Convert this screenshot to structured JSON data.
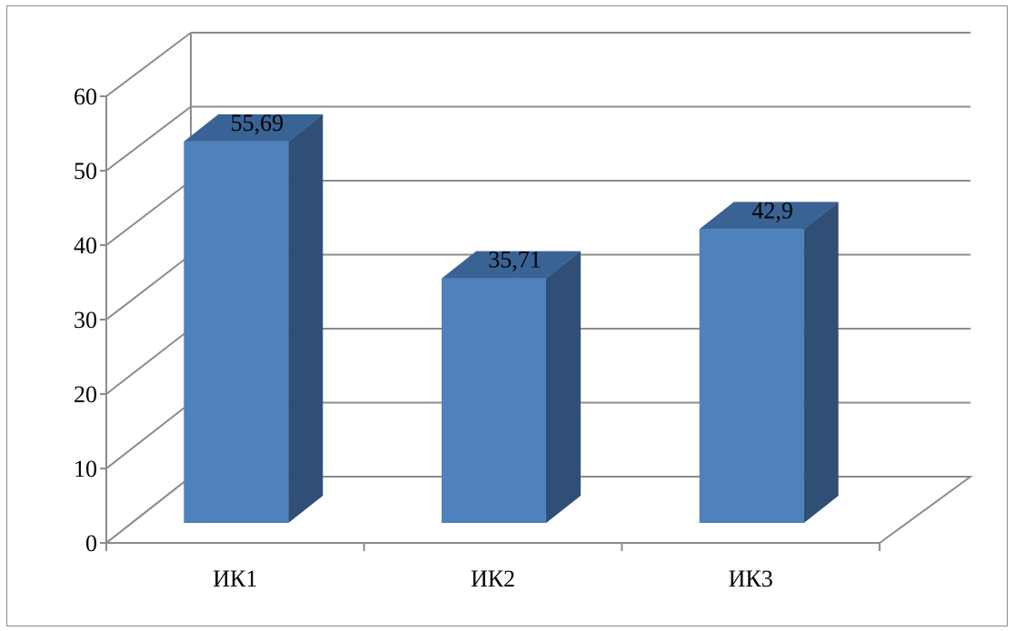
{
  "chart_data": {
    "type": "bar",
    "style": "3d-column",
    "categories": [
      "ИК1",
      "ИК2",
      "ИК3"
    ],
    "values": [
      55.69,
      35.71,
      42.9
    ],
    "data_labels": [
      "55,69",
      "35,71",
      "42,9"
    ],
    "ylim": [
      0,
      60
    ],
    "yticks": [
      0,
      10,
      20,
      30,
      40,
      50,
      60
    ],
    "ytick_labels": [
      "0",
      "10",
      "20",
      "30",
      "40",
      "50",
      "60"
    ],
    "grid": true,
    "legend": "none",
    "colors": {
      "bar_front": "#4f81bd",
      "bar_side": "#2f4f76",
      "bar_top": "#3a6395",
      "grid": "#8c8c8c",
      "frame": "#8c8c8c"
    }
  }
}
